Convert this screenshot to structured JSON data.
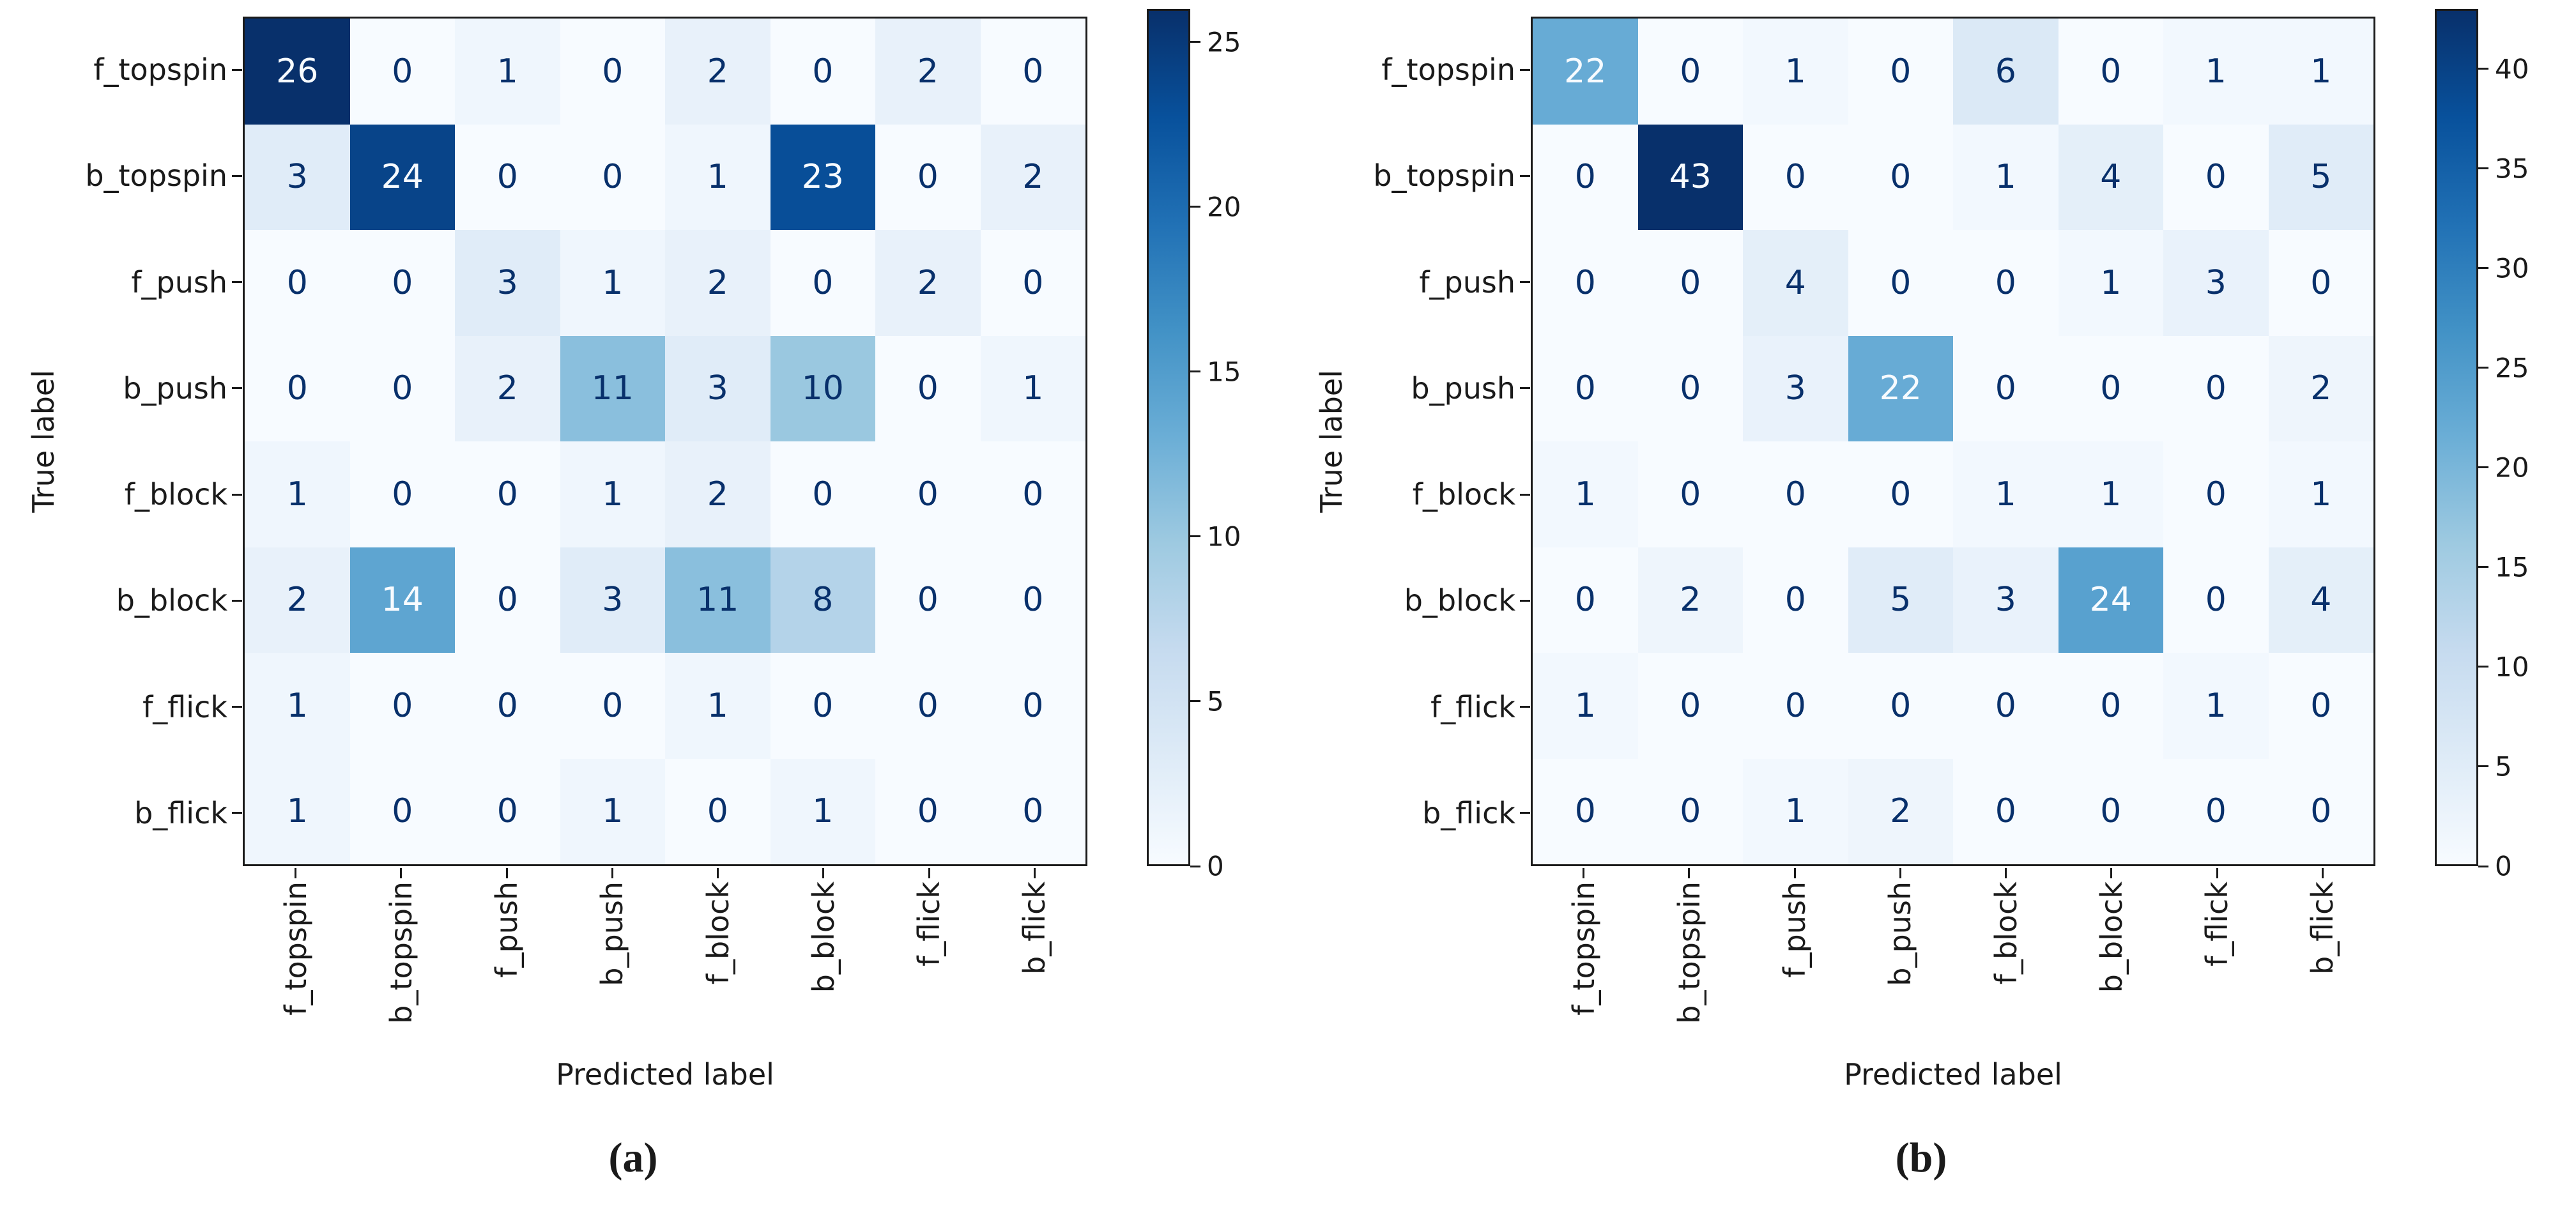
{
  "figure": {
    "background": "#ffffff",
    "description": "Two confusion matrix heatmaps, subfigures (a) and (b)"
  },
  "colors": {
    "cmap_name": "Blues",
    "cmap_stops": [
      {
        "t": 0.0,
        "c": "#f7fbff"
      },
      {
        "t": 0.125,
        "c": "#deebf7"
      },
      {
        "t": 0.25,
        "c": "#c6dbef"
      },
      {
        "t": 0.375,
        "c": "#9ecae1"
      },
      {
        "t": 0.5,
        "c": "#6baed6"
      },
      {
        "t": 0.625,
        "c": "#4292c6"
      },
      {
        "t": 0.75,
        "c": "#2171b5"
      },
      {
        "t": 0.875,
        "c": "#08519c"
      },
      {
        "t": 1.0,
        "c": "#08306b"
      }
    ],
    "cell_text_dark": "#08306b",
    "cell_text_light": "#f7fbff",
    "axis_color": "#1a1a1a"
  },
  "chart_data": [
    {
      "type": "heatmap",
      "caption": "(a)",
      "xlabel": "Predicted label",
      "ylabel": "True label",
      "x_categories": [
        "f_topspin",
        "b_topspin",
        "f_push",
        "b_push",
        "f_block",
        "b_block",
        "f_flick",
        "b_flick"
      ],
      "y_categories": [
        "f_topspin",
        "b_topspin",
        "f_push",
        "b_push",
        "f_block",
        "b_block",
        "f_flick",
        "b_flick"
      ],
      "matrix": [
        [
          26,
          0,
          1,
          0,
          2,
          0,
          2,
          0
        ],
        [
          3,
          24,
          0,
          0,
          1,
          23,
          0,
          2
        ],
        [
          0,
          0,
          3,
          1,
          2,
          0,
          2,
          0
        ],
        [
          0,
          0,
          2,
          11,
          3,
          10,
          0,
          1
        ],
        [
          1,
          0,
          0,
          1,
          2,
          0,
          0,
          0
        ],
        [
          2,
          14,
          0,
          3,
          11,
          8,
          0,
          0
        ],
        [
          1,
          0,
          0,
          0,
          1,
          0,
          0,
          0
        ],
        [
          1,
          0,
          0,
          1,
          0,
          1,
          0,
          0
        ]
      ],
      "vmin": 0,
      "vmax": 26,
      "colorbar_ticks": [
        0,
        5,
        10,
        15,
        20,
        25
      ],
      "colormap": "Blues",
      "colorbar_position": "right",
      "grid": false
    },
    {
      "type": "heatmap",
      "caption": "(b)",
      "xlabel": "Predicted label",
      "ylabel": "True label",
      "x_categories": [
        "f_topspin",
        "b_topspin",
        "f_push",
        "b_push",
        "f_block",
        "b_block",
        "f_flick",
        "b_flick"
      ],
      "y_categories": [
        "f_topspin",
        "b_topspin",
        "f_push",
        "b_push",
        "f_block",
        "b_block",
        "f_flick",
        "b_flick"
      ],
      "matrix": [
        [
          22,
          0,
          1,
          0,
          6,
          0,
          1,
          1
        ],
        [
          0,
          43,
          0,
          0,
          1,
          4,
          0,
          5
        ],
        [
          0,
          0,
          4,
          0,
          0,
          1,
          3,
          0
        ],
        [
          0,
          0,
          3,
          22,
          0,
          0,
          0,
          2
        ],
        [
          1,
          0,
          0,
          0,
          1,
          1,
          0,
          1
        ],
        [
          0,
          2,
          0,
          5,
          3,
          24,
          0,
          4
        ],
        [
          1,
          0,
          0,
          0,
          0,
          0,
          1,
          0
        ],
        [
          0,
          0,
          1,
          2,
          0,
          0,
          0,
          0
        ]
      ],
      "vmin": 0,
      "vmax": 43,
      "colorbar_ticks": [
        0,
        5,
        10,
        15,
        20,
        25,
        30,
        35,
        40
      ],
      "colormap": "Blues",
      "colorbar_position": "right",
      "grid": false
    }
  ]
}
